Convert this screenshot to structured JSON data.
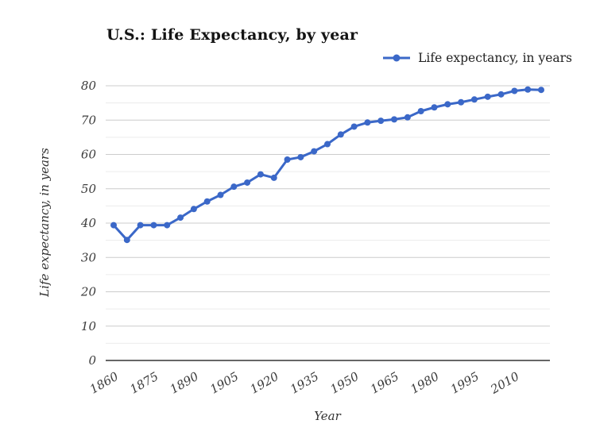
{
  "title": "U.S.: Life Expectancy, by year",
  "legend": {
    "label": "Life expectancy, in years"
  },
  "axes": {
    "y_title": "Life expectancy, in years",
    "x_title": "Year"
  },
  "colors": {
    "series": "#3b68c8",
    "grid_major": "#cccccc",
    "grid_minor": "#ececec",
    "axis_line": "#333333",
    "tick_text": "#3c3c3c",
    "title_text": "#141414"
  },
  "chart_data": {
    "type": "line",
    "title": "U.S.: Life Expectancy, by year",
    "xlabel": "Year",
    "ylabel": "Life expectancy, in years",
    "legend_entries": [
      "Life expectancy, in years"
    ],
    "legend_position": "top-right",
    "grid": "major-and-minor-horizontal",
    "marker": "circle",
    "x": [
      1860,
      1865,
      1870,
      1875,
      1880,
      1885,
      1890,
      1895,
      1900,
      1905,
      1910,
      1915,
      1920,
      1925,
      1930,
      1935,
      1940,
      1945,
      1950,
      1955,
      1960,
      1965,
      1970,
      1975,
      1980,
      1985,
      1990,
      1995,
      2000,
      2005,
      2010,
      2015,
      2020
    ],
    "series": [
      {
        "name": "Life expectancy, in years",
        "values": [
          39.4,
          35.1,
          39.4,
          39.4,
          39.4,
          41.6,
          44.1,
          46.3,
          48.2,
          50.6,
          51.8,
          54.2,
          53.2,
          58.5,
          59.2,
          60.9,
          63.0,
          65.8,
          68.1,
          69.3,
          69.8,
          70.2,
          70.8,
          72.6,
          73.7,
          74.6,
          75.2,
          76.0,
          76.8,
          77.5,
          78.5,
          78.9,
          78.8
        ]
      }
    ],
    "xlim": [
      1860,
      2020
    ],
    "ylim": [
      0,
      80
    ],
    "y_major_ticks": [
      0,
      10,
      20,
      30,
      40,
      50,
      60,
      70,
      80
    ],
    "y_minor_step": 5,
    "x_tick_labels": [
      "1860",
      "1875",
      "1890",
      "1905",
      "1920",
      "1935",
      "1950",
      "1965",
      "1980",
      "1995",
      "2010"
    ]
  }
}
